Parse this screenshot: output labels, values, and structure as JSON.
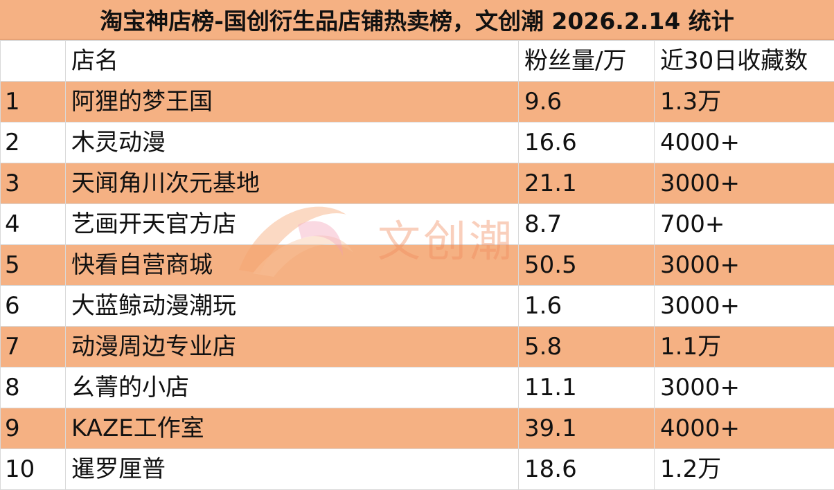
{
  "title": "淘宝神店榜-国创衍生品店铺热卖榜，文创潮 2026.2.14 统计",
  "columns": {
    "rank": "",
    "name": "店名",
    "fans": "粉丝量/万",
    "favorites": "近30日收藏数"
  },
  "rows": [
    {
      "rank": "1",
      "name": "阿狸的梦王国",
      "fans": "9.6",
      "favorites": "1.3万"
    },
    {
      "rank": "2",
      "name": "木灵动漫",
      "fans": "16.6",
      "favorites": "4000+"
    },
    {
      "rank": "3",
      "name": "天闻角川次元基地",
      "fans": "21.1",
      "favorites": "3000+"
    },
    {
      "rank": "4",
      "name": "艺画开天官方店",
      "fans": "8.7",
      "favorites": "700+"
    },
    {
      "rank": "5",
      "name": "快看自营商城",
      "fans": "50.5",
      "favorites": "3000+"
    },
    {
      "rank": "6",
      "name": "大蓝鲸动漫潮玩",
      "fans": "1.6",
      "favorites": "3000+"
    },
    {
      "rank": "7",
      "name": "动漫周边专业店",
      "fans": "5.8",
      "favorites": "1.1万"
    },
    {
      "rank": "8",
      "name": "幺菁的小店",
      "fans": "11.1",
      "favorites": "3000+"
    },
    {
      "rank": "9",
      "name": "KAZE工作室",
      "fans": "39.1",
      "favorites": "4000+"
    },
    {
      "rank": "10",
      "name": "暹罗厘普",
      "fans": "18.6",
      "favorites": "1.2万"
    }
  ],
  "watermark": {
    "text": "文创潮",
    "icon": "wenchuangchao-logo-icon"
  },
  "colors": {
    "band": "#f5b183",
    "plain": "#ffffff",
    "grid": "#d9d9d9",
    "watermark": "#f08a5d"
  }
}
